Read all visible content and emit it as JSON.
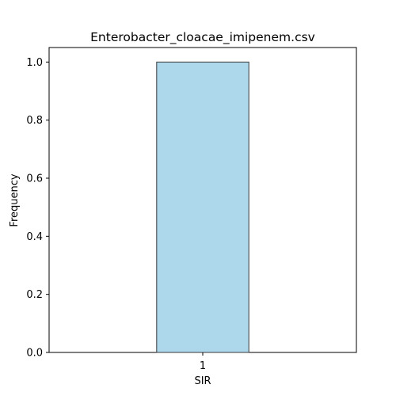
{
  "chart_data": {
    "type": "bar",
    "title": "Enterobacter_cloacae_imipenem.csv",
    "xlabel": "SIR",
    "ylabel": "Frequency",
    "categories": [
      "1"
    ],
    "values": [
      1.0
    ],
    "ylim": [
      0,
      1.05
    ],
    "yticks": [
      "0.0",
      "0.2",
      "0.4",
      "0.6",
      "0.8",
      "1.0"
    ],
    "grid": false,
    "legend": "none",
    "bar_color": "#add8ec",
    "bar_edge_color": "#3a3a3a"
  }
}
